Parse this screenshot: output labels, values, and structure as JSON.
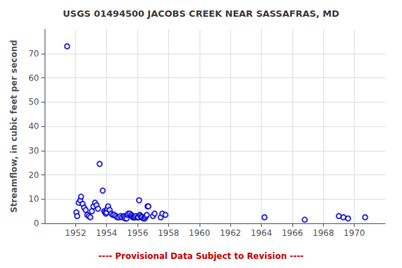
{
  "chart_data": {
    "type": "scatter",
    "title": "USGS 01494500 JACOBS CREEK NEAR SASSAFRAS, MD",
    "subtitle": "---- Provisional Data Subject to Revision ----",
    "ylabel": "Streamflow, in cubic feet per second",
    "x": [
      1951.45,
      1952.05,
      1952.1,
      1952.2,
      1952.3,
      1952.35,
      1952.45,
      1952.55,
      1952.65,
      1952.75,
      1952.85,
      1952.95,
      1953.05,
      1953.15,
      1953.25,
      1953.35,
      1953.45,
      1953.55,
      1953.75,
      1953.85,
      1953.9,
      1953.95,
      1954.0,
      1954.05,
      1954.1,
      1954.2,
      1954.3,
      1954.4,
      1954.5,
      1954.6,
      1954.7,
      1954.8,
      1954.9,
      1955.0,
      1955.1,
      1955.15,
      1955.2,
      1955.3,
      1955.35,
      1955.4,
      1955.5,
      1955.6,
      1955.65,
      1955.7,
      1955.75,
      1955.8,
      1955.85,
      1955.9,
      1956.0,
      1956.05,
      1956.1,
      1956.15,
      1956.2,
      1956.25,
      1956.3,
      1956.4,
      1956.45,
      1956.5,
      1956.55,
      1956.6,
      1956.65,
      1956.7,
      1957.0,
      1957.1,
      1957.5,
      1957.6,
      1957.8,
      1964.2,
      1966.8,
      1969.0,
      1969.3,
      1969.6,
      1970.7
    ],
    "values": [
      73.0,
      4.5,
      3.0,
      8.5,
      9.5,
      11.0,
      8.0,
      6.5,
      5.5,
      3.5,
      3.0,
      2.5,
      5.0,
      7.0,
      8.5,
      7.5,
      6.0,
      24.5,
      13.5,
      5.0,
      4.5,
      4.0,
      4.5,
      6.0,
      7.0,
      5.5,
      4.0,
      3.5,
      3.5,
      3.0,
      2.5,
      2.5,
      3.0,
      2.5,
      3.0,
      2.5,
      2.0,
      2.0,
      3.5,
      4.0,
      4.0,
      3.5,
      3.0,
      2.5,
      2.5,
      2.5,
      2.5,
      3.0,
      2.5,
      2.5,
      9.5,
      3.5,
      3.0,
      2.5,
      2.5,
      2.0,
      2.0,
      2.5,
      3.0,
      3.5,
      7.0,
      7.0,
      3.0,
      4.0,
      2.5,
      4.0,
      3.5,
      2.5,
      1.5,
      3.0,
      2.5,
      2.0,
      2.5
    ],
    "color": "#0000cc",
    "marker": "open_circle",
    "xlim": [
      1950.0,
      1972.0
    ],
    "ylim": [
      0,
      80
    ],
    "xticks": [
      1952,
      1954,
      1956,
      1958,
      1960,
      1962,
      1964,
      1966,
      1968,
      1970
    ],
    "yticks": [
      0,
      10,
      20,
      30,
      40,
      50,
      60,
      70
    ],
    "grid": true
  }
}
